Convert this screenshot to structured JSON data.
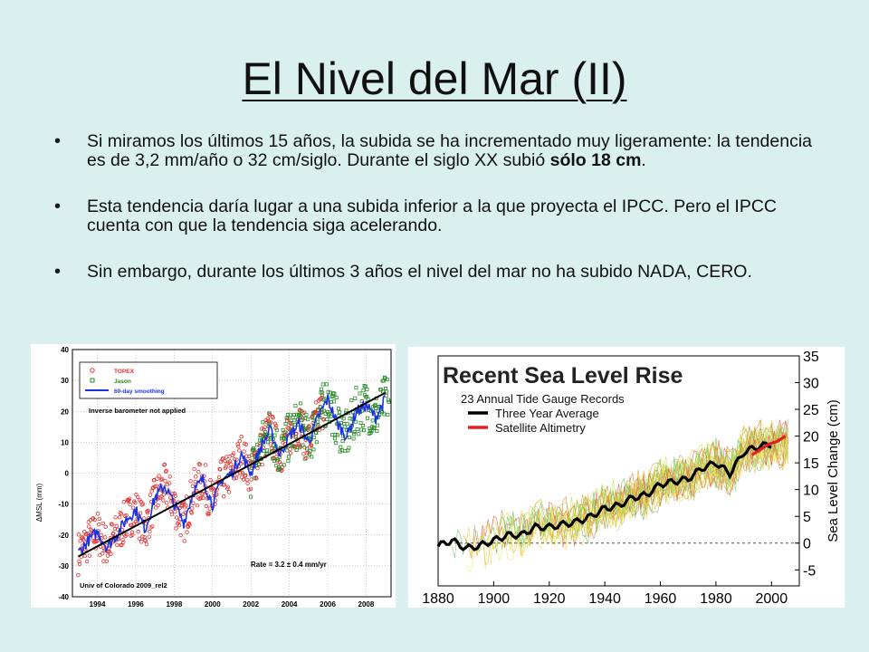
{
  "slide": {
    "title": "El Nivel del Mar (II)",
    "bullets": [
      {
        "pre": "Si miramos los últimos 15 años, la subida se ha incrementado muy ligeramente: la tendencia es de 3,2 mm/año o 32 cm/siglo. Durante el siglo XX subió ",
        "bold": "sólo 18 cm",
        "post": "."
      },
      {
        "text": "Esta tendencia daría lugar a una subida inferior a la que proyecta el IPCC. Pero el IPCC cuenta con que la tendencia siga acelerando."
      },
      {
        "text": "Sin embargo, durante los últimos 3 años el nivel del mar no ha subido NADA, CERO."
      }
    ]
  },
  "chart_data": [
    {
      "type": "scatter",
      "ylabel": "ΔMSL (mm)",
      "xlabel": "",
      "xlim": [
        1992.7,
        2009.3
      ],
      "ylim": [
        -40,
        40
      ],
      "x_ticks": [
        "1994",
        "1996",
        "1998",
        "2000",
        "2002",
        "2004",
        "2006",
        "2008"
      ],
      "y_ticks": [
        "-40",
        "-30",
        "-20",
        "-10",
        "0",
        "10",
        "20",
        "30",
        "40"
      ],
      "legend": {
        "placement": "top-left",
        "entries": [
          "TOPEX",
          "Jason",
          "60-day smoothing"
        ]
      },
      "annotations": [
        "Inverse barometer not applied",
        "Rate = 3.2 ± 0.4 mm/yr",
        "Univ of Colorado 2009_rel2"
      ],
      "series": [
        {
          "name": "TOPEX",
          "color": "#e03030",
          "x_range": [
            1993.0,
            2005.8
          ]
        },
        {
          "name": "Jason",
          "color": "#2a8a2a",
          "x_range": [
            2002.0,
            2009.3
          ]
        },
        {
          "name": "60-day smoothing",
          "color": "#1a33e0",
          "x": [
            1993.0,
            1993.5,
            1994.0,
            1994.5,
            1995.0,
            1995.5,
            1996.0,
            1996.5,
            1997.0,
            1997.5,
            1998.0,
            1998.5,
            1999.0,
            1999.5,
            2000.0,
            2000.5,
            2001.0,
            2001.5,
            2002.0,
            2002.5,
            2003.0,
            2003.5,
            2004.0,
            2004.5,
            2005.0,
            2005.5,
            2006.0,
            2006.5,
            2007.0,
            2007.5,
            2008.0,
            2008.5,
            2009.0
          ],
          "values": [
            -26,
            -22,
            -19,
            -24,
            -20,
            -15,
            -12,
            -18,
            -8,
            -4,
            -10,
            -16,
            -6,
            -2,
            -10,
            -2,
            0,
            6,
            0,
            8,
            14,
            6,
            12,
            16,
            10,
            18,
            24,
            16,
            12,
            20,
            22,
            18,
            24
          ]
        },
        {
          "name": "trend",
          "color": "#000000",
          "x": [
            1993.0,
            2009.0
          ],
          "values": [
            -27,
            26
          ]
        }
      ]
    },
    {
      "type": "line",
      "title": "Recent Sea Level Rise",
      "subtitle": "23 Annual Tide Gauge Records",
      "ylabel": "Sea Level Change (cm)",
      "xlim": [
        1880,
        2010
      ],
      "ylim": [
        -8,
        35
      ],
      "x_ticks": [
        "1880",
        "1900",
        "1920",
        "1940",
        "1960",
        "1980",
        "2000"
      ],
      "y_ticks": [
        "-5",
        "0",
        "5",
        "10",
        "15",
        "20",
        "25",
        "30",
        "35"
      ],
      "legend": {
        "placement": "top-left",
        "entries": [
          "Three Year Average",
          "Satellite Altimetry"
        ]
      },
      "series": [
        {
          "name": "Three Year Average",
          "color": "#000000",
          "x": [
            1880,
            1885,
            1890,
            1895,
            1900,
            1905,
            1910,
            1915,
            1920,
            1925,
            1930,
            1935,
            1940,
            1945,
            1950,
            1955,
            1960,
            1965,
            1970,
            1975,
            1980,
            1985,
            1990,
            1995,
            2000
          ],
          "values": [
            -0.5,
            0.5,
            -1,
            -0.5,
            0.5,
            1.5,
            1.5,
            3,
            3,
            3.5,
            4,
            5,
            6.5,
            7,
            8.5,
            9,
            11,
            11.5,
            12,
            14,
            15,
            13,
            17,
            18,
            18.5
          ]
        },
        {
          "name": "Satellite Altimetry",
          "color": "#e02020",
          "x": [
            1993,
            1996,
            1999,
            2002,
            2005
          ],
          "values": [
            16.5,
            17.5,
            18.5,
            19,
            20
          ]
        }
      ]
    }
  ]
}
